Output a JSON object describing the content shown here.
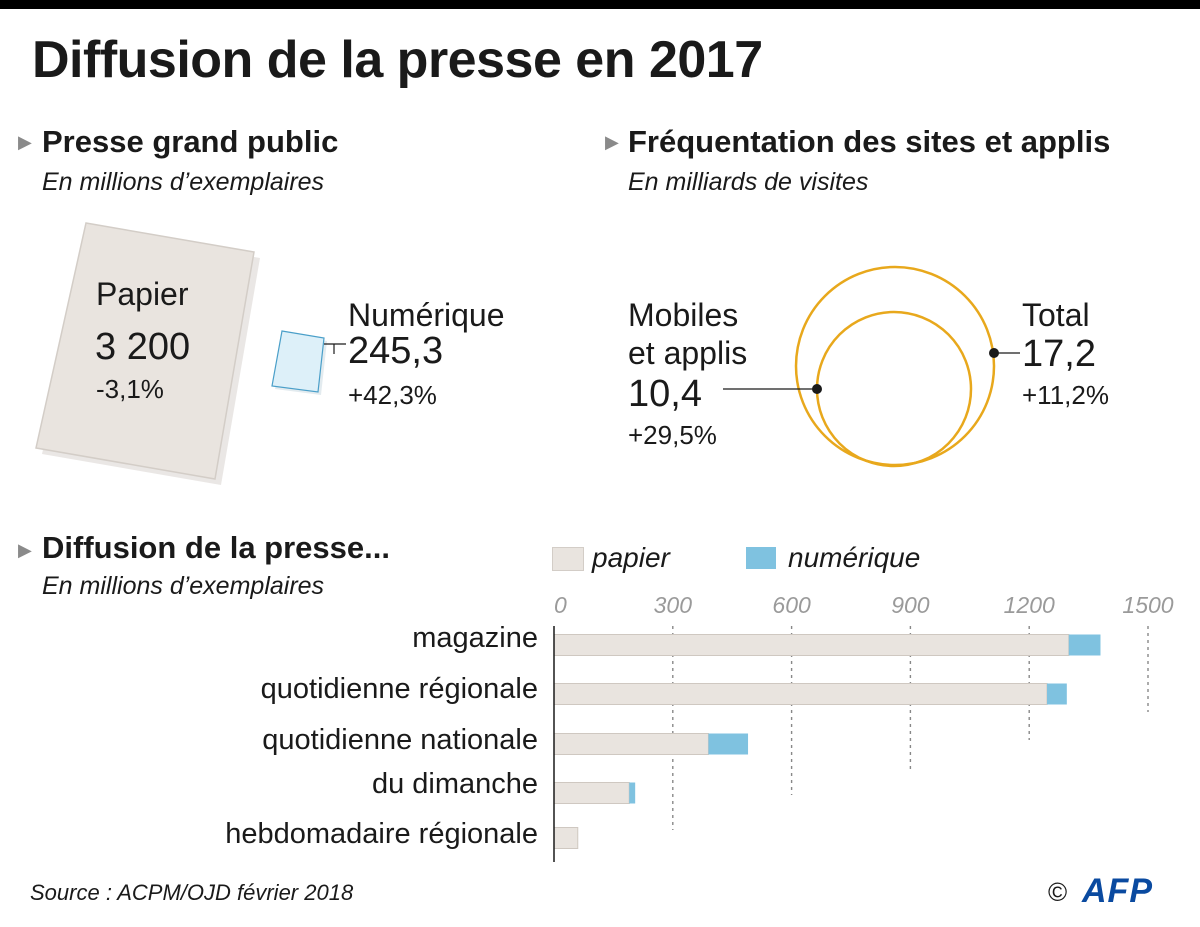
{
  "title": "Diffusion de la presse en 2017",
  "presse_grand_public": {
    "title": "Presse grand public",
    "subtitle": "En millions d’exemplaires",
    "papier": {
      "label": "Papier",
      "value": "3 200",
      "change": "-3,1%"
    },
    "numerique": {
      "label": "Numérique",
      "value": "245,3",
      "change": "+42,3%"
    }
  },
  "frequentation": {
    "title": "Fréquentation des sites et applis",
    "subtitle": "En milliards de visites",
    "mobiles": {
      "label_line1": "Mobiles",
      "label_line2": "et applis",
      "value": "10,4",
      "change": "+29,5%"
    },
    "total": {
      "label": "Total",
      "value": "17,2",
      "change": "+11,2%"
    }
  },
  "diffusion": {
    "title": "Diffusion de la presse...",
    "subtitle": "En millions d’exemplaires"
  },
  "colors": {
    "papier": "#e9e4df",
    "numerique": "#7fc2e0",
    "circle": "#e8a81c",
    "marker": "#8a8a8a"
  },
  "chart_data": {
    "type": "bar",
    "orientation": "horizontal",
    "stacked": true,
    "categories": [
      "magazine",
      "quotidienne régionale",
      "quotidienne nationale",
      "du dimanche",
      "hebdomadaire régionale"
    ],
    "series": [
      {
        "name": "papier",
        "values": [
          1300,
          1245,
          390,
          190,
          60
        ]
      },
      {
        "name": "numérique",
        "values": [
          80,
          50,
          100,
          15,
          0
        ]
      }
    ],
    "xticks": [
      "0",
      "300",
      "600",
      "900",
      "1200",
      "1500"
    ],
    "xlim": [
      0,
      1500
    ],
    "legend_position": "top"
  },
  "source": "Source : ACPM/OJD février 2018",
  "credit": {
    "copyright": "©",
    "logo": "AFP"
  }
}
